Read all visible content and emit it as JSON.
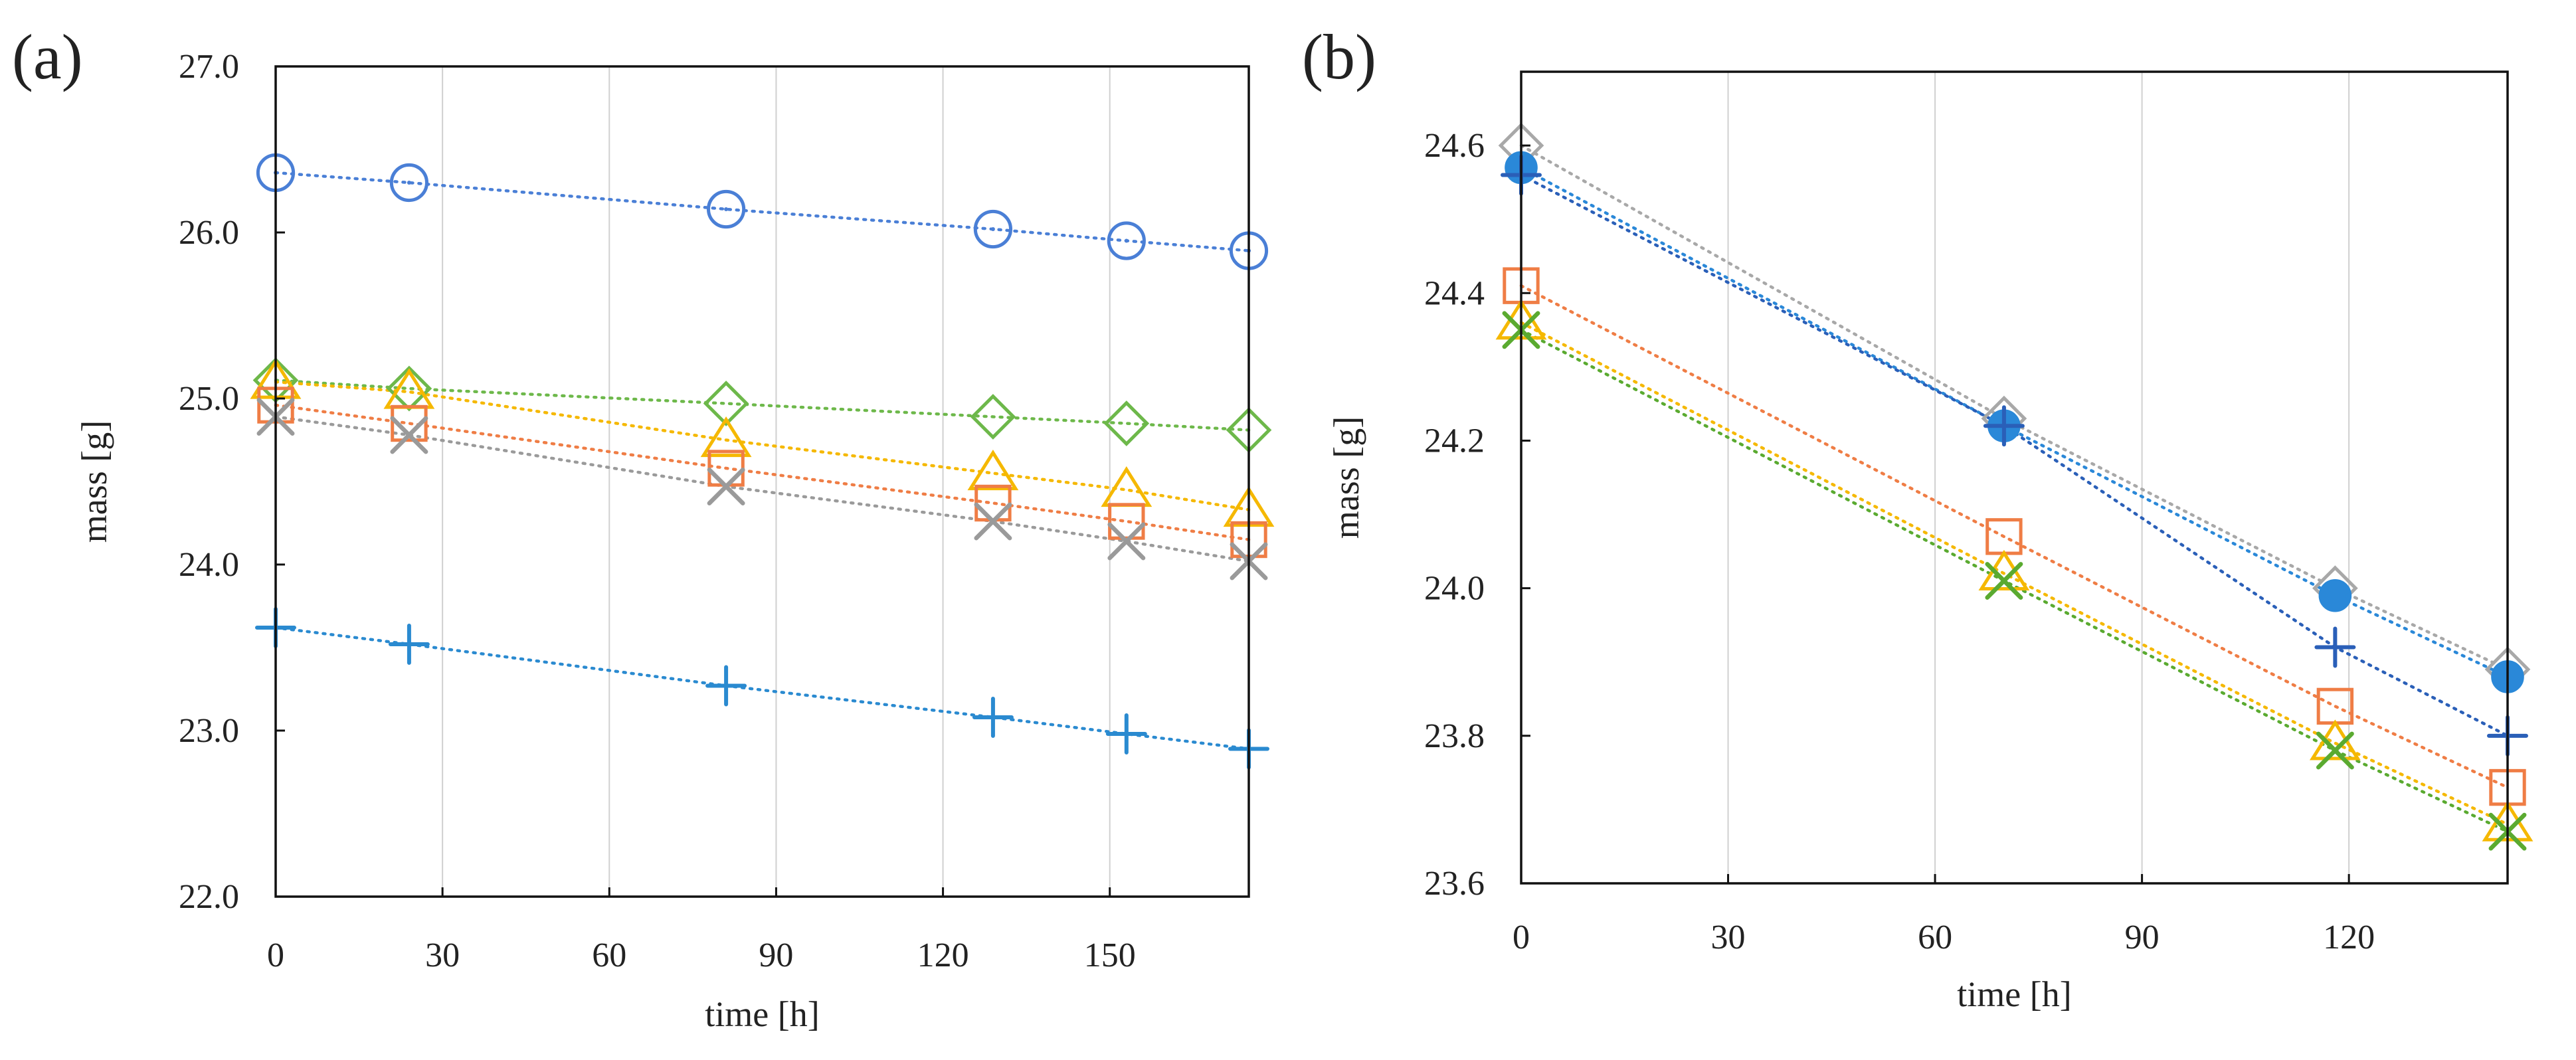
{
  "chart_data": [
    {
      "type": "line",
      "panel_label": "(a)",
      "xlabel": "time [h]",
      "ylabel": "mass [g]",
      "xlim": [
        0,
        175
      ],
      "ylim": [
        22.0,
        27.0
      ],
      "xticks": [
        0,
        30,
        60,
        90,
        120,
        150
      ],
      "xtick_labels": [
        "0",
        "30",
        "60",
        "90",
        "120",
        "150"
      ],
      "yticks": [
        22.0,
        23.0,
        24.0,
        25.0,
        26.0,
        27.0
      ],
      "ytick_labels": [
        "22.0",
        "23.0",
        "24.0",
        "25.0",
        "26.0",
        "27.0"
      ],
      "grid": "x-only",
      "legend": "none",
      "x": [
        0,
        24,
        81,
        129,
        153,
        175
      ],
      "series": [
        {
          "name": "circle",
          "marker": "circle",
          "color": "#4a7fd6",
          "values": [
            26.36,
            26.3,
            26.14,
            26.02,
            25.95,
            25.89
          ]
        },
        {
          "name": "diamond",
          "marker": "diamond",
          "color": "#6db84a",
          "values": [
            25.11,
            25.06,
            24.97,
            24.89,
            24.85,
            24.81
          ]
        },
        {
          "name": "triangle",
          "marker": "triangle",
          "color": "#f5b800",
          "values": [
            25.1,
            25.04,
            24.75,
            24.55,
            24.45,
            24.33
          ]
        },
        {
          "name": "square",
          "marker": "square",
          "color": "#ef7d45",
          "values": [
            24.96,
            24.85,
            24.58,
            24.37,
            24.26,
            24.15
          ]
        },
        {
          "name": "x",
          "marker": "x",
          "color": "#9a9a9a",
          "values": [
            24.89,
            24.78,
            24.47,
            24.26,
            24.14,
            24.02
          ]
        },
        {
          "name": "plus",
          "marker": "plus",
          "color": "#2a8ad0",
          "values": [
            23.62,
            23.52,
            23.27,
            23.08,
            22.98,
            22.89
          ]
        }
      ]
    },
    {
      "type": "line",
      "panel_label": "(b)",
      "xlabel": "time [h]",
      "ylabel": "mass [g]",
      "xlim": [
        0,
        143
      ],
      "ylim": [
        23.6,
        24.7
      ],
      "xticks": [
        0,
        30,
        60,
        90,
        120
      ],
      "xtick_labels": [
        "0",
        "30",
        "60",
        "90",
        "120"
      ],
      "yticks": [
        23.6,
        23.8,
        24.0,
        24.2,
        24.4,
        24.6
      ],
      "ytick_labels": [
        "23.6",
        "23.8",
        "24.0",
        "24.2",
        "24.4",
        "24.6"
      ],
      "grid": "x-only",
      "legend": "none",
      "x": [
        0,
        70,
        118,
        143
      ],
      "series": [
        {
          "name": "diamond",
          "marker": "diamond",
          "color": "#a8a8a8",
          "values": [
            24.6,
            24.23,
            24.0,
            23.89
          ]
        },
        {
          "name": "filled-circle",
          "marker": "filled-circle",
          "color": "#2a88d8",
          "values": [
            24.57,
            24.22,
            23.99,
            23.88
          ]
        },
        {
          "name": "plus",
          "marker": "plus",
          "color": "#2a5fb8",
          "values": [
            24.56,
            24.22,
            23.92,
            23.8
          ]
        },
        {
          "name": "square",
          "marker": "square",
          "color": "#ef7d45",
          "values": [
            24.41,
            24.07,
            23.84,
            23.73
          ]
        },
        {
          "name": "triangle",
          "marker": "triangle",
          "color": "#f5b800",
          "values": [
            24.36,
            24.02,
            23.79,
            23.68
          ]
        },
        {
          "name": "x",
          "marker": "x",
          "color": "#5aaa30",
          "values": [
            24.35,
            24.01,
            23.78,
            23.67
          ]
        }
      ]
    }
  ]
}
